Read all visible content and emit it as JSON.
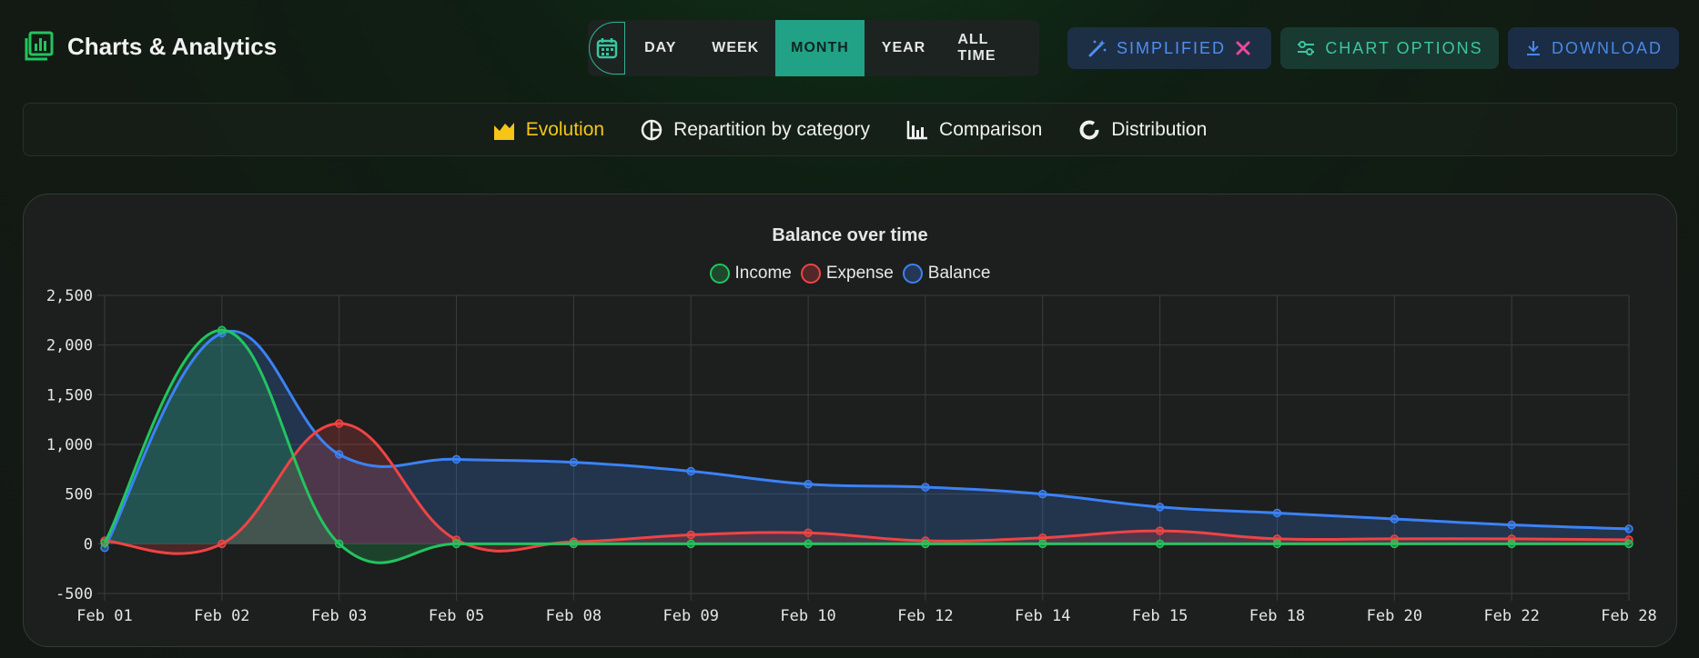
{
  "app": {
    "title": "Charts & Analytics",
    "icon": "chart-icon"
  },
  "periods": [
    "DAY",
    "WEEK",
    "MONTH",
    "YEAR",
    "ALL TIME"
  ],
  "period_active": "MONTH",
  "toolbar": {
    "simplified_label": "SIMPLIFIED",
    "chart_options_label": "CHART OPTIONS",
    "download_label": "DOWNLOAD"
  },
  "tabs": [
    {
      "label": "Evolution",
      "icon": "area-chart-icon",
      "active": true
    },
    {
      "label": "Repartition by category",
      "icon": "pie-chart-icon",
      "active": false
    },
    {
      "label": "Comparison",
      "icon": "bar-chart-icon",
      "active": false
    },
    {
      "label": "Distribution",
      "icon": "donut-chart-icon",
      "active": false
    }
  ],
  "colors": {
    "income": "#22c55e",
    "expense": "#ef4444",
    "balance": "#3b82f6",
    "accent": "#21a287",
    "active_tab": "#f5c518"
  },
  "chart_data": {
    "type": "line",
    "title": "Balance over time",
    "categories": [
      "Feb 01",
      "Feb 02",
      "Feb 03",
      "Feb 05",
      "Feb 08",
      "Feb 09",
      "Feb 10",
      "Feb 12",
      "Feb 14",
      "Feb 15",
      "Feb 18",
      "Feb 20",
      "Feb 22",
      "Feb 28"
    ],
    "series": [
      {
        "name": "Income",
        "color": "#22c55e",
        "fill": true,
        "values": [
          10,
          2150,
          0,
          0,
          0,
          0,
          0,
          0,
          0,
          0,
          0,
          0,
          0,
          0
        ]
      },
      {
        "name": "Expense",
        "color": "#ef4444",
        "fill": true,
        "values": [
          30,
          0,
          1210,
          40,
          20,
          90,
          110,
          30,
          60,
          130,
          50,
          50,
          50,
          40
        ]
      },
      {
        "name": "Balance",
        "color": "#3b82f6",
        "fill": true,
        "values": [
          -40,
          2120,
          900,
          850,
          820,
          730,
          600,
          570,
          500,
          370,
          310,
          250,
          190,
          150
        ]
      }
    ],
    "ylim": [
      -500,
      2500
    ],
    "yticks": [
      "2,500",
      "2,000",
      "1,500",
      "1,000",
      "500",
      "0",
      "-500"
    ],
    "grid": true,
    "legend_position": "top"
  }
}
